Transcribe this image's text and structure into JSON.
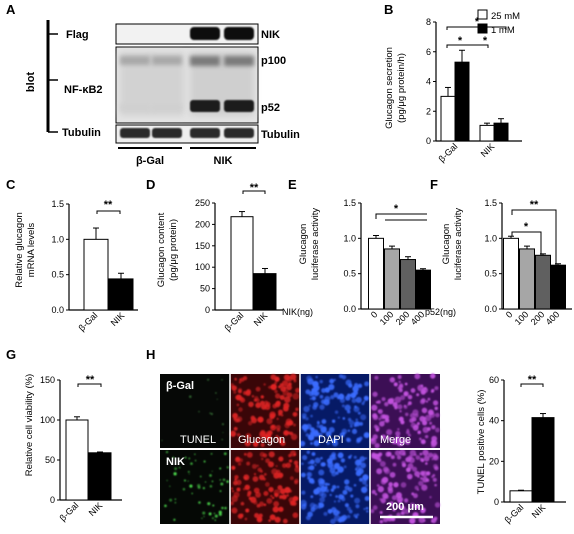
{
  "panels": {
    "A": {
      "label": "A",
      "blot_word": "blot",
      "left_rows": [
        "Flag",
        "NF-κB2",
        "Tubulin"
      ],
      "right_rows": [
        "NIK",
        "p100",
        "p52",
        "Tubulin"
      ],
      "groups": [
        "β-Gal",
        "NIK"
      ]
    },
    "B": {
      "label": "B",
      "ylabel": [
        "Glucagon secretion",
        "(pg/μg protein/h)"
      ],
      "legend": [
        "25 mM",
        "1 mM"
      ],
      "stars": [
        "*",
        "*",
        "*"
      ]
    },
    "C": {
      "label": "C",
      "ylabel": [
        "Relative glucagon",
        "mRNA levels"
      ],
      "stars": "**"
    },
    "D": {
      "label": "D",
      "ylabel": [
        "Glucagon content",
        "(pg/μg protein)"
      ],
      "stars": "**"
    },
    "E": {
      "label": "E",
      "ylabel": [
        "Glucagon",
        "luciferase activity"
      ],
      "xprefix": "NIK(ng)",
      "stars": "*"
    },
    "F": {
      "label": "F",
      "ylabel": [
        "Glucagon",
        "luciferase activity"
      ],
      "xprefix": "p52(ng)",
      "stars": [
        "**",
        "*"
      ]
    },
    "G": {
      "label": "G",
      "ylabel": [
        "Relative cell viability (%)"
      ],
      "stars": "**"
    },
    "H": {
      "label": "H",
      "row_labels": [
        "β-Gal",
        "NIK"
      ],
      "col_labels": [
        "TUNEL",
        "Glucagon",
        "DAPI",
        "Merge"
      ],
      "scale_bar": "200 μm",
      "ylabel": [
        "TUNEL positive cells (%)"
      ],
      "stars": "**"
    }
  },
  "chart_data": [
    {
      "id": "B",
      "type": "bar",
      "categories": [
        "β-Gal",
        "NIK"
      ],
      "series": [
        {
          "name": "25 mM",
          "values": [
            3.0,
            1.05
          ],
          "errors": [
            0.6,
            0.15
          ],
          "color": "#ffffff"
        },
        {
          "name": "1 mM",
          "values": [
            5.3,
            1.2
          ],
          "errors": [
            0.8,
            0.3
          ],
          "color": "#000000"
        }
      ],
      "ylim": [
        0,
        8
      ],
      "yticks": [
        0,
        2,
        4,
        6,
        8
      ],
      "xlabel": "",
      "ylabel": "Glucagon secretion (pg/μg protein/h)",
      "legend": "top-right"
    },
    {
      "id": "C",
      "type": "bar",
      "categories": [
        "β-Gal",
        "NIK"
      ],
      "values": [
        1.0,
        0.44
      ],
      "errors": [
        0.16,
        0.08
      ],
      "colors": [
        "#ffffff",
        "#000000"
      ],
      "ylim": [
        0,
        1.5
      ],
      "yticks": [
        0,
        0.5,
        1.0,
        1.5
      ],
      "ytick_labels": [
        "0.0",
        "0.5",
        "1.0",
        "1.5"
      ],
      "xlabel": "",
      "ylabel": "Relative glucagon mRNA levels"
    },
    {
      "id": "D",
      "type": "bar",
      "categories": [
        "β-Gal",
        "NIK"
      ],
      "values": [
        218,
        85
      ],
      "errors": [
        12,
        12
      ],
      "colors": [
        "#ffffff",
        "#000000"
      ],
      "ylim": [
        0,
        250
      ],
      "yticks": [
        0,
        50,
        100,
        150,
        200,
        250
      ],
      "xlabel": "",
      "ylabel": "Glucagon content (pg/μg protein)"
    },
    {
      "id": "E",
      "type": "bar",
      "categories": [
        "0",
        "100",
        "200",
        "400"
      ],
      "values": [
        1.0,
        0.85,
        0.7,
        0.55
      ],
      "errors": [
        0.04,
        0.04,
        0.04,
        0.02
      ],
      "colors": [
        "#ffffff",
        "#a6a6a6",
        "#606060",
        "#000000"
      ],
      "ylim": [
        0,
        1.5
      ],
      "yticks": [
        0,
        0.5,
        1.0,
        1.5
      ],
      "ytick_labels": [
        "0.0",
        "0.5",
        "1.0",
        "1.5"
      ],
      "xlabel": "NIK(ng)",
      "ylabel": "Glucagon luciferase activity"
    },
    {
      "id": "F",
      "type": "bar",
      "categories": [
        "0",
        "100",
        "200",
        "400"
      ],
      "values": [
        1.0,
        0.85,
        0.76,
        0.62
      ],
      "errors": [
        0.03,
        0.04,
        0.02,
        0.02
      ],
      "colors": [
        "#ffffff",
        "#a6a6a6",
        "#606060",
        "#000000"
      ],
      "ylim": [
        0,
        1.5
      ],
      "yticks": [
        0,
        0.5,
        1.0,
        1.5
      ],
      "ytick_labels": [
        "0.0",
        "0.5",
        "1.0",
        "1.5"
      ],
      "xlabel": "p52(ng)",
      "ylabel": "Glucagon luciferase activity"
    },
    {
      "id": "G",
      "type": "bar",
      "categories": [
        "β-Gal",
        "NIK"
      ],
      "values": [
        100,
        59
      ],
      "errors": [
        4,
        1
      ],
      "colors": [
        "#ffffff",
        "#000000"
      ],
      "ylim": [
        0,
        150
      ],
      "yticks": [
        0,
        50,
        100,
        150
      ],
      "xlabel": "",
      "ylabel": "Relative cell viability (%)"
    },
    {
      "id": "H",
      "type": "bar",
      "categories": [
        "β-Gal",
        "NIK"
      ],
      "values": [
        5.5,
        41.5
      ],
      "errors": [
        0.3,
        2
      ],
      "colors": [
        "#ffffff",
        "#000000"
      ],
      "ylim": [
        0,
        60
      ],
      "yticks": [
        0,
        20,
        40,
        60
      ],
      "xlabel": "",
      "ylabel": "TUNEL positive cells (%)"
    }
  ]
}
